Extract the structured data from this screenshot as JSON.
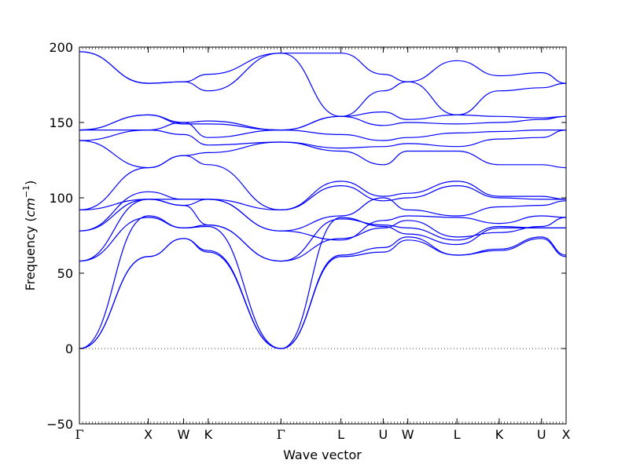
{
  "chart_data": {
    "type": "line",
    "title": "",
    "xlabel": "Wave vector",
    "ylabel": "Frequency",
    "ylabel_unit": "cm",
    "ylabel_unit_exp": "−1",
    "ylim": [
      -50,
      200
    ],
    "yticks": [
      -50,
      0,
      50,
      100,
      150,
      200
    ],
    "x_range": [
      0,
      4.95
    ],
    "zero_line": {
      "y": 0,
      "style": "dotted"
    },
    "grid": false,
    "legend": "none",
    "line_color": "#0000ff",
    "high_symmetry_points": [
      {
        "label": "Γ",
        "x": 0.0
      },
      {
        "label": "X",
        "x": 0.7
      },
      {
        "label": "W",
        "x": 1.06
      },
      {
        "label": "K",
        "x": 1.31
      },
      {
        "label": "Γ",
        "x": 2.05
      },
      {
        "label": "L",
        "x": 2.66
      },
      {
        "label": "U",
        "x": 3.09
      },
      {
        "label": "W",
        "x": 3.34
      },
      {
        "label": "L",
        "x": 3.84
      },
      {
        "label": "K",
        "x": 4.27
      },
      {
        "label": "U",
        "x": 4.7
      },
      {
        "label": "X",
        "x": 4.95
      }
    ],
    "series": [
      {
        "values": [
          0,
          61,
          73,
          64,
          0,
          61,
          64,
          72,
          62,
          65,
          73,
          61
        ]
      },
      {
        "values": [
          0,
          61,
          73,
          65,
          0,
          62,
          67,
          74,
          62,
          66,
          74,
          62
        ]
      },
      {
        "values": [
          0,
          88,
          80,
          81,
          0,
          87,
          81,
          76,
          69,
          80,
          80,
          80
        ]
      },
      {
        "values": [
          58,
          87,
          80,
          82,
          58,
          86,
          82,
          80,
          72,
          81,
          80,
          80
        ]
      },
      {
        "values": [
          58,
          99,
          95,
          82,
          58,
          73,
          80,
          85,
          74,
          77,
          81,
          87
        ]
      },
      {
        "values": [
          78,
          99,
          95,
          99,
          78,
          72,
          85,
          88,
          87,
          83,
          88,
          87
        ]
      },
      {
        "values": [
          78,
          104,
          99,
          99,
          78,
          88,
          100,
          92,
          88,
          94,
          95,
          98
        ]
      },
      {
        "values": [
          92,
          99,
          99,
          99,
          92,
          108,
          98,
          100,
          108,
          100,
          99,
          99
        ]
      },
      {
        "values": [
          92,
          120,
          128,
          122,
          92,
          111,
          101,
          103,
          111,
          101,
          101,
          99
        ]
      },
      {
        "values": [
          138,
          120,
          128,
          130,
          137,
          131,
          122,
          131,
          131,
          122,
          122,
          120
        ]
      },
      {
        "values": [
          138,
          145,
          142,
          135,
          137,
          133,
          134,
          136,
          134,
          139,
          140,
          145
        ]
      },
      {
        "values": [
          145,
          145,
          150,
          140,
          145,
          142,
          138,
          140,
          143,
          144,
          145,
          145
        ]
      },
      {
        "values": [
          145,
          155,
          149,
          149,
          145,
          154,
          148,
          150,
          149,
          150,
          152,
          154
        ]
      },
      {
        "values": [
          145,
          155,
          150,
          151,
          145,
          154,
          157,
          152,
          155,
          154,
          153,
          154
        ]
      },
      {
        "values": [
          197,
          176,
          177,
          171,
          196,
          154,
          171,
          177,
          155,
          171,
          173,
          176
        ]
      },
      {
        "values": [
          197,
          176,
          177,
          182,
          196,
          196,
          182,
          177,
          191,
          181,
          183,
          176
        ]
      }
    ]
  }
}
